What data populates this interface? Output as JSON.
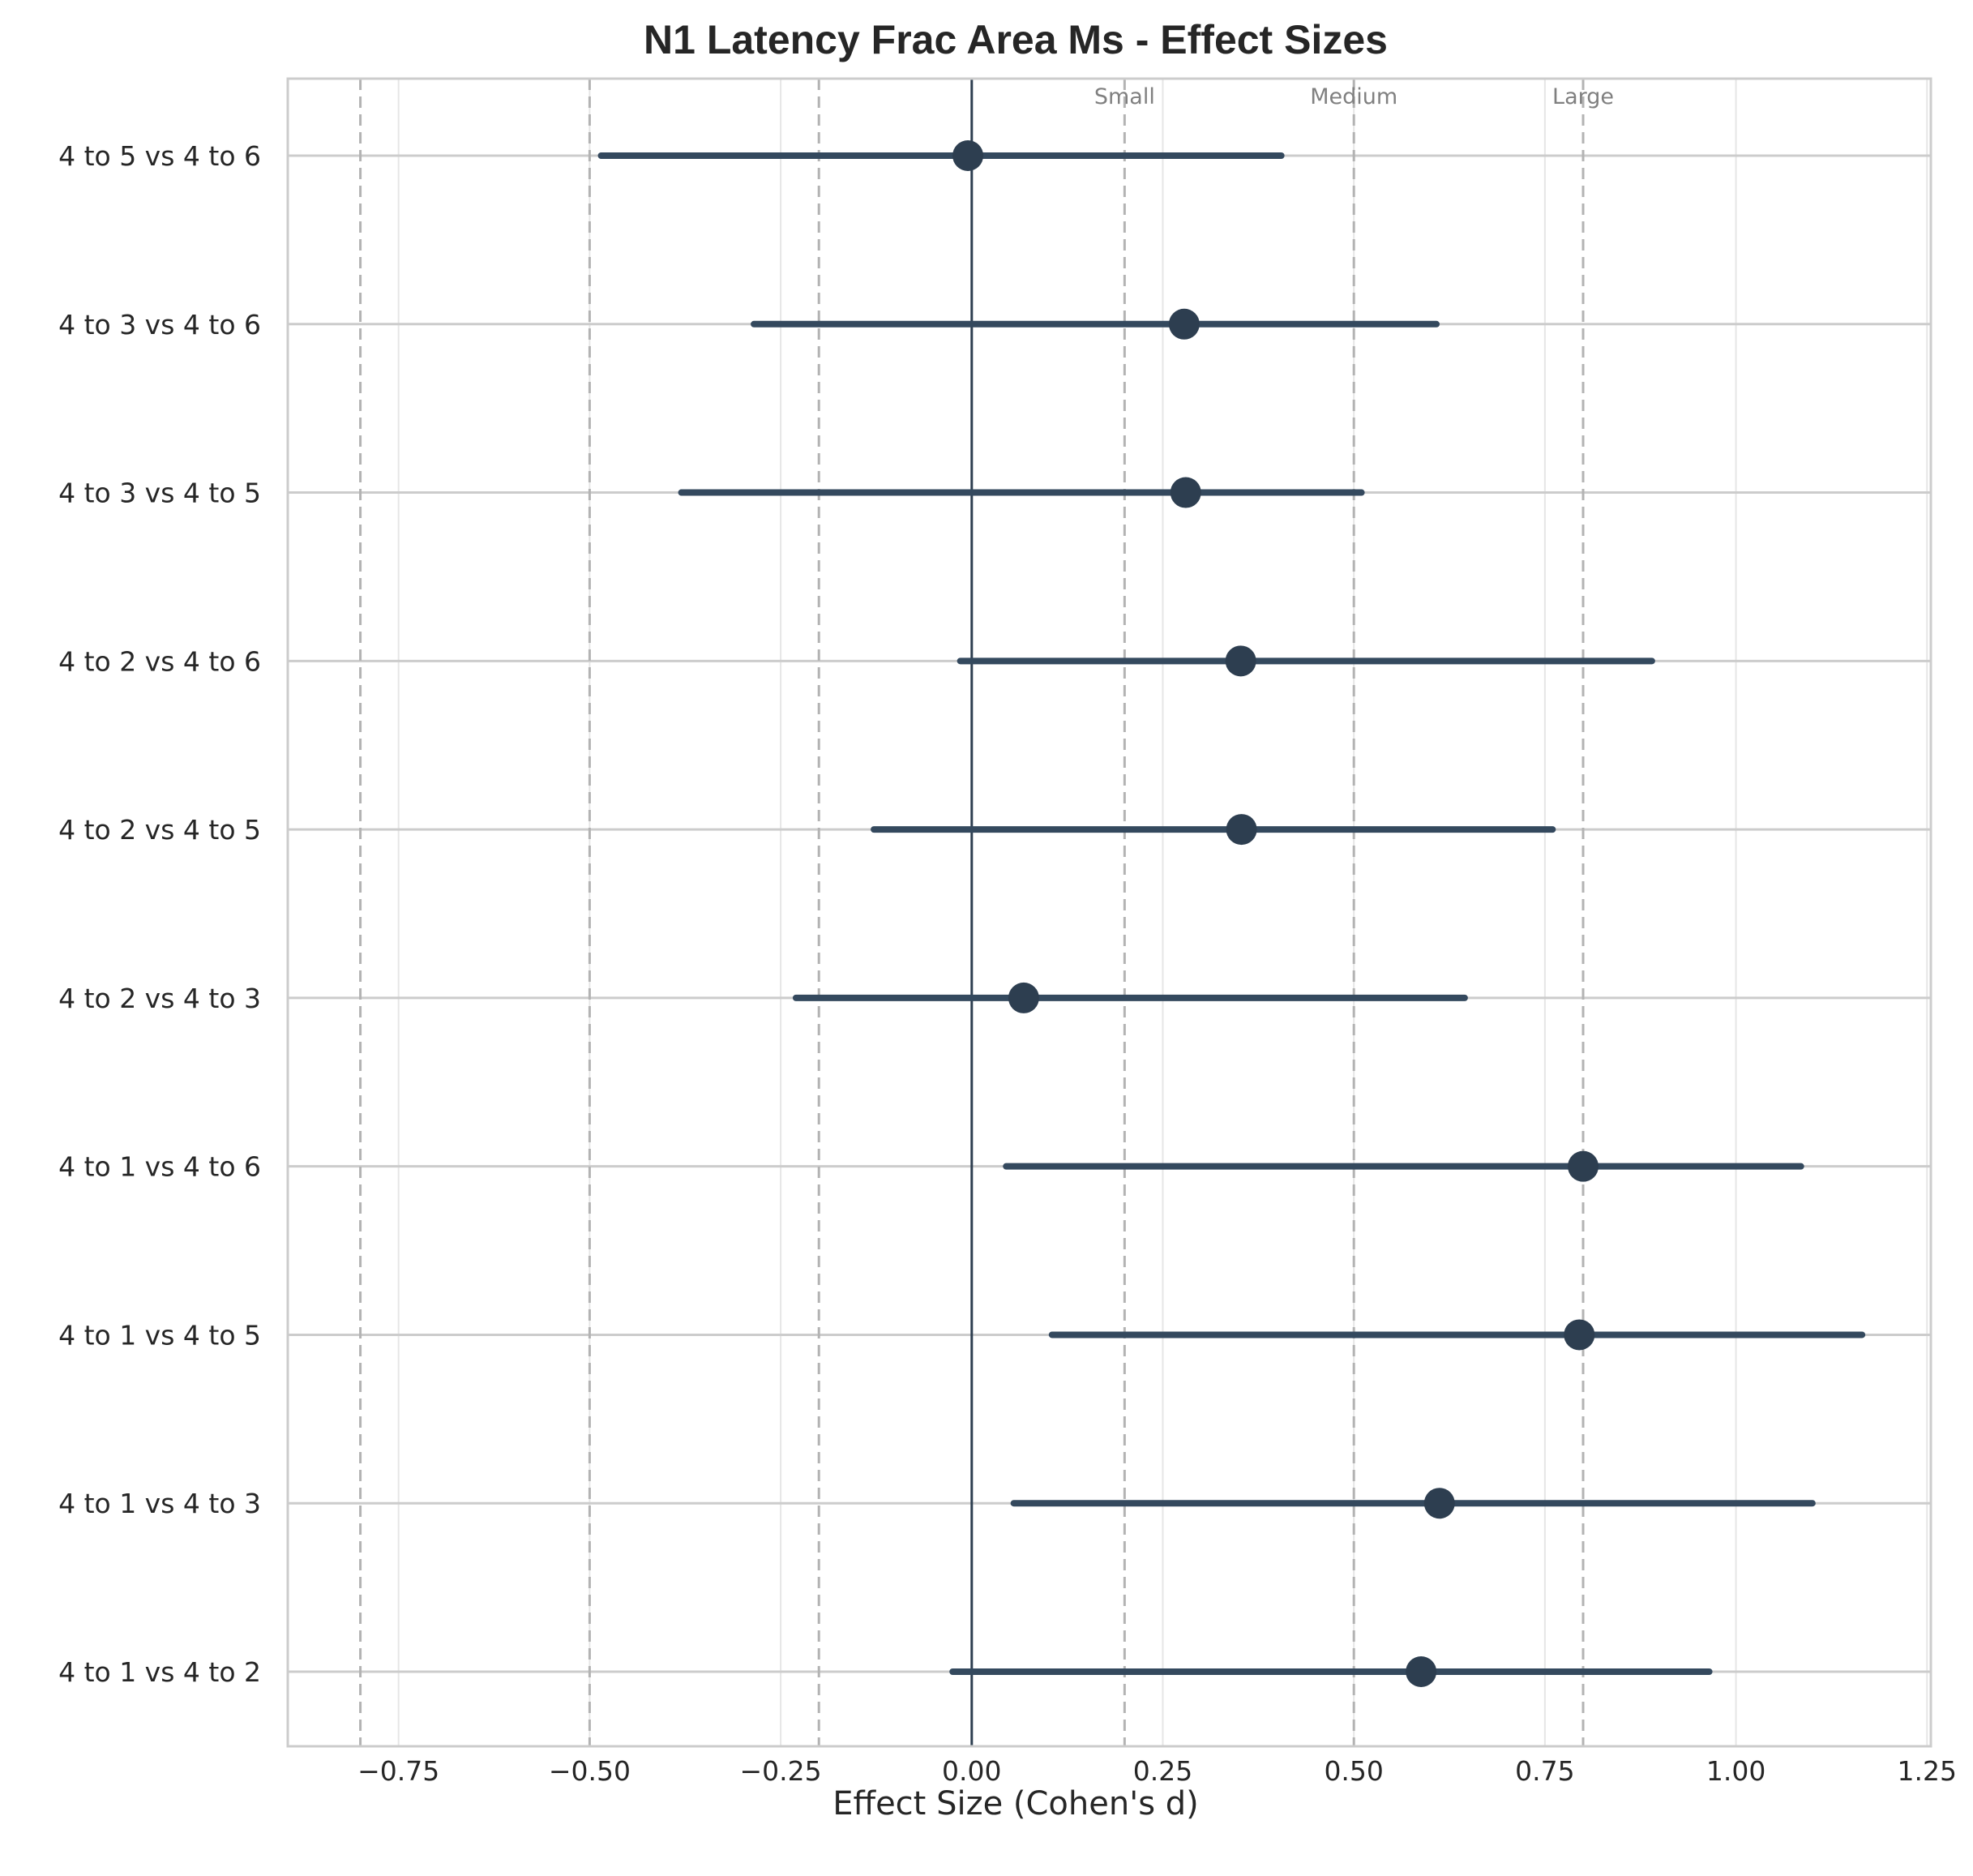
{
  "chart_data": {
    "type": "forest",
    "title": "N1 Latency Frac Area Ms - Effect Sizes",
    "xlabel": "Effect Size (Cohen's d)",
    "ylabel": "",
    "xlim": [
      -0.895,
      1.255
    ],
    "xticks": [
      -0.75,
      -0.5,
      -0.25,
      0.0,
      0.25,
      0.5,
      0.75,
      1.0,
      1.25
    ],
    "xtick_labels": [
      "−0.75",
      "−0.50",
      "−0.25",
      "0.00",
      "0.25",
      "0.50",
      "0.75",
      "1.00",
      "1.25"
    ],
    "grid": true,
    "zero_line": 0.0,
    "reference_lines": [
      {
        "value": -0.8,
        "label": ""
      },
      {
        "value": -0.5,
        "label": ""
      },
      {
        "value": -0.2,
        "label": ""
      },
      {
        "value": 0.2,
        "label": "Small"
      },
      {
        "value": 0.5,
        "label": "Medium"
      },
      {
        "value": 0.8,
        "label": "Large"
      }
    ],
    "colors": {
      "marker": "#2d3e50",
      "ci_line": "#34495e",
      "zero_line": "#2d3e50",
      "reference_line": "#b3b3b3",
      "grid": "#e6e6e6",
      "axes_frame": "#cccccc"
    },
    "comparisons": [
      {
        "label": "4 to 5 vs 4 to 6",
        "d": -0.005,
        "ci_low": -0.485,
        "ci_high": 0.405
      },
      {
        "label": "4 to 3 vs 4 to 6",
        "d": 0.278,
        "ci_low": -0.285,
        "ci_high": 0.608
      },
      {
        "label": "4 to 3 vs 4 to 5",
        "d": 0.28,
        "ci_low": -0.38,
        "ci_high": 0.51
      },
      {
        "label": "4 to 2 vs 4 to 6",
        "d": 0.352,
        "ci_low": -0.015,
        "ci_high": 0.89
      },
      {
        "label": "4 to 2 vs 4 to 5",
        "d": 0.353,
        "ci_low": -0.128,
        "ci_high": 0.76
      },
      {
        "label": "4 to 2 vs 4 to 3",
        "d": 0.068,
        "ci_low": -0.23,
        "ci_high": 0.645
      },
      {
        "label": "4 to 1 vs 4 to 6",
        "d": 0.8,
        "ci_low": 0.045,
        "ci_high": 1.085
      },
      {
        "label": "4 to 1 vs 4 to 5",
        "d": 0.795,
        "ci_low": 0.105,
        "ci_high": 1.165
      },
      {
        "label": "4 to 1 vs 4 to 3",
        "d": 0.612,
        "ci_low": 0.055,
        "ci_high": 1.1
      },
      {
        "label": "4 to 1 vs 4 to 2",
        "d": 0.588,
        "ci_low": -0.025,
        "ci_high": 0.965
      }
    ]
  }
}
